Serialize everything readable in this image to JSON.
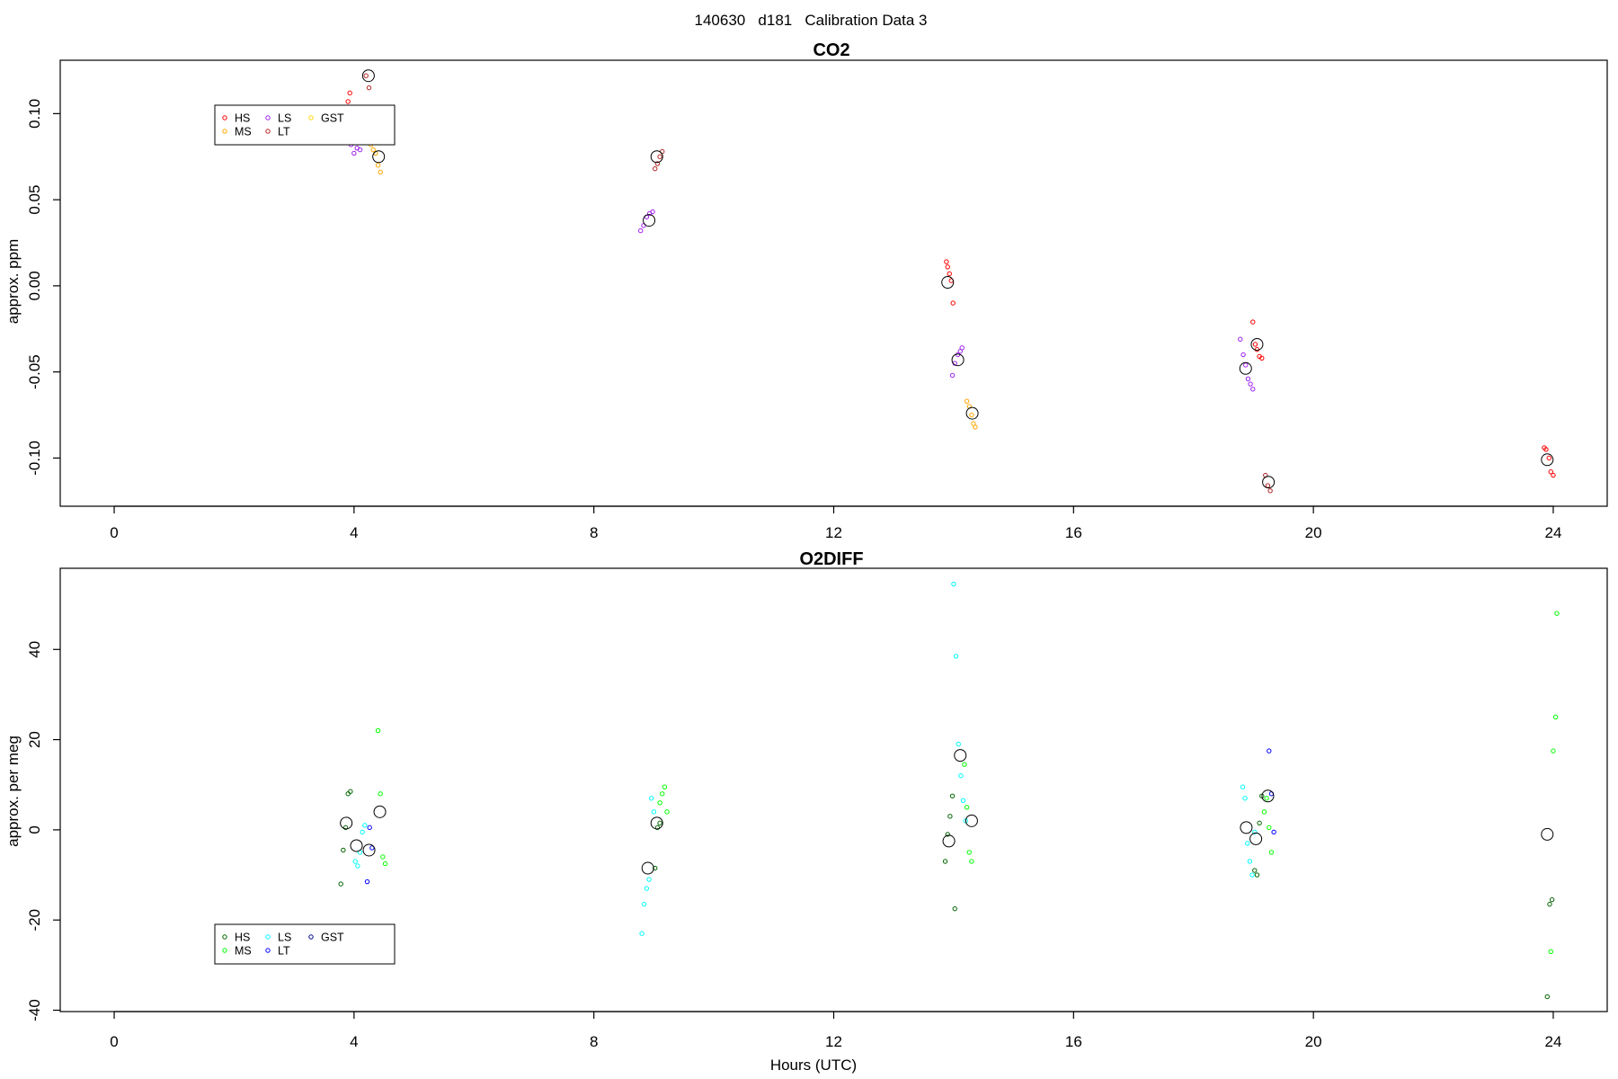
{
  "figure": {
    "title": "140630   d181   Calibration Data 3"
  },
  "chart_data": [
    {
      "type": "scatter",
      "title": "CO2",
      "xlabel": "",
      "ylabel": "approx. ppm",
      "xlim": [
        -0.9,
        24.9
      ],
      "ylim": [
        -0.128,
        0.131
      ],
      "xticks": [
        "0",
        "4",
        "8",
        "12",
        "16",
        "20",
        "24"
      ],
      "yticks": [
        "-0.10",
        "-0.05",
        "0.00",
        "0.05",
        "0.10"
      ],
      "ytick_values": [
        -0.1,
        -0.05,
        0.0,
        0.05,
        0.1
      ],
      "legend_position": "top-left",
      "series": [
        {
          "name": "HS",
          "color": "#ff0000",
          "x": [
            3.82,
            3.84,
            3.9,
            3.93,
            3.97,
            13.88,
            13.9,
            13.93,
            13.96,
            13.99,
            18.99,
            19.03,
            19.06,
            19.1,
            19.14,
            23.85,
            23.88,
            23.93,
            23.96,
            24.0
          ],
          "y": [
            0.098,
            0.103,
            0.107,
            0.112,
            0.094,
            0.014,
            0.011,
            0.007,
            0.003,
            -0.01,
            -0.021,
            -0.034,
            -0.037,
            -0.041,
            -0.042,
            -0.094,
            -0.095,
            -0.1,
            -0.108,
            -0.11
          ]
        },
        {
          "name": "MS",
          "color": "#ffa500",
          "x": [
            4.28,
            4.32,
            4.36,
            4.4,
            4.44,
            14.22,
            14.26,
            14.3,
            14.33,
            14.36
          ],
          "y": [
            0.082,
            0.079,
            0.077,
            0.07,
            0.066,
            -0.067,
            -0.07,
            -0.075,
            -0.08,
            -0.082
          ]
        },
        {
          "name": "LS",
          "color": "#a020f0",
          "x": [
            3.95,
            4.0,
            4.05,
            4.1,
            8.78,
            8.83,
            8.88,
            8.93,
            8.98,
            13.98,
            14.02,
            14.07,
            14.11,
            14.14,
            18.78,
            18.83,
            18.87,
            18.91,
            18.95,
            18.99
          ],
          "y": [
            0.082,
            0.077,
            0.08,
            0.079,
            0.032,
            0.035,
            0.04,
            0.042,
            0.043,
            -0.052,
            -0.045,
            -0.04,
            -0.038,
            -0.036,
            -0.031,
            -0.04,
            -0.046,
            -0.054,
            -0.057,
            -0.06
          ]
        },
        {
          "name": "LT",
          "color": "#b22222",
          "x": [
            4.2,
            4.25,
            9.02,
            9.06,
            9.1,
            9.14,
            19.2,
            19.24,
            19.28
          ],
          "y": [
            0.122,
            0.115,
            0.068,
            0.071,
            0.075,
            0.078,
            -0.11,
            -0.116,
            -0.119
          ]
        },
        {
          "name": "GST",
          "color": "#ffd700",
          "x": [],
          "y": []
        },
        {
          "name": "",
          "color": "#000000",
          "marker": "mean",
          "x": [
            4.24,
            4.41,
            8.92,
            9.05,
            13.9,
            14.07,
            14.31,
            18.87,
            19.06,
            19.25,
            23.9
          ],
          "y": [
            0.122,
            0.075,
            0.038,
            0.075,
            0.002,
            -0.043,
            -0.074,
            -0.048,
            -0.034,
            -0.114,
            -0.101
          ]
        }
      ]
    },
    {
      "type": "scatter",
      "title": "O2DIFF",
      "xlabel": "Hours (UTC)",
      "ylabel": "approx. per meg",
      "xlim": [
        -0.9,
        24.9
      ],
      "ylim": [
        -40.3,
        58.0
      ],
      "xticks": [
        "0",
        "4",
        "8",
        "12",
        "16",
        "20",
        "24"
      ],
      "yticks": [
        "-40",
        "-20",
        "0",
        "20",
        "40"
      ],
      "ytick_values": [
        -40,
        -20,
        0,
        20,
        40
      ],
      "legend_position": "bottom-left",
      "series": [
        {
          "name": "HS",
          "color": "#006400",
          "x": [
            3.78,
            3.82,
            3.86,
            3.9,
            3.94,
            9.02,
            9.06,
            9.1,
            13.86,
            13.9,
            13.94,
            13.98,
            14.02,
            19.02,
            19.06,
            19.1,
            19.14,
            23.9,
            23.94,
            23.98
          ],
          "y": [
            -12.0,
            -4.5,
            0.5,
            8.0,
            8.5,
            -8.5,
            0.5,
            1.5,
            -7.0,
            -1.0,
            3.0,
            7.5,
            -17.5,
            -9.0,
            -10.0,
            1.5,
            7.5,
            -37.0,
            -16.5,
            -15.5
          ]
        },
        {
          "name": "MS",
          "color": "#00ff00",
          "x": [
            4.4,
            4.44,
            4.48,
            4.52,
            9.1,
            9.14,
            9.18,
            9.22,
            14.18,
            14.22,
            14.26,
            14.3,
            19.18,
            19.22,
            19.26,
            19.3,
            23.96,
            24.0,
            24.04,
            24.06
          ],
          "y": [
            22.0,
            8.0,
            -6.0,
            -7.5,
            6.0,
            8.0,
            9.5,
            4.0,
            14.5,
            5.0,
            -5.0,
            -7.0,
            4.0,
            7.0,
            0.5,
            -5.0,
            -27.0,
            17.5,
            25.0,
            48.0
          ]
        },
        {
          "name": "LS",
          "color": "#00ffff",
          "x": [
            4.02,
            4.06,
            4.1,
            4.14,
            4.18,
            8.8,
            8.84,
            8.88,
            8.92,
            8.96,
            9.0,
            14.0,
            14.04,
            14.08,
            14.12,
            14.16,
            14.2,
            18.82,
            18.86,
            18.9,
            18.94,
            18.98,
            19.02
          ],
          "y": [
            -7.0,
            -8.0,
            -5.0,
            -0.5,
            1.0,
            -23.0,
            -16.5,
            -13.0,
            -11.0,
            7.0,
            4.0,
            54.5,
            38.5,
            19.0,
            12.0,
            6.5,
            2.0,
            9.5,
            7.0,
            -3.0,
            -7.0,
            -10.0,
            -0.5
          ]
        },
        {
          "name": "LT",
          "color": "#0000ff",
          "x": [
            4.22,
            4.26,
            4.3,
            19.26,
            19.3,
            19.34
          ],
          "y": [
            -11.5,
            0.5,
            -4.0,
            17.5,
            8.0,
            -0.5
          ]
        },
        {
          "name": "GST",
          "color": "#00008b",
          "x": [],
          "y": []
        },
        {
          "name": "",
          "color": "#000000",
          "marker": "mean",
          "x": [
            3.87,
            4.04,
            4.25,
            4.43,
            8.9,
            9.05,
            13.92,
            14.11,
            14.3,
            18.88,
            19.04,
            19.24,
            23.9
          ],
          "y": [
            1.5,
            -3.5,
            -4.5,
            4.0,
            -8.5,
            1.5,
            -2.5,
            16.5,
            2.0,
            0.5,
            -2.0,
            7.5,
            -1.0
          ]
        }
      ]
    }
  ]
}
